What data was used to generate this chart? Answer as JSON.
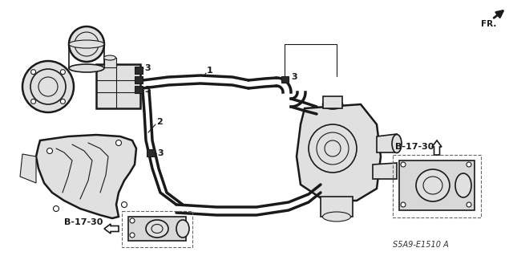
{
  "background_color": "#ffffff",
  "figsize": [
    6.4,
    3.19
  ],
  "dpi": 100,
  "fr_label": "FR.",
  "b1730_label": "B-17-30",
  "footer_text": "S5A9-E1510 A",
  "line_color": "#1a1a1a",
  "gray_fill": "#c8c8c8",
  "light_gray": "#e0e0e0",
  "dark_fill": "#2a2a2a",
  "label_1": "1",
  "label_2": "2",
  "label_3": "3"
}
